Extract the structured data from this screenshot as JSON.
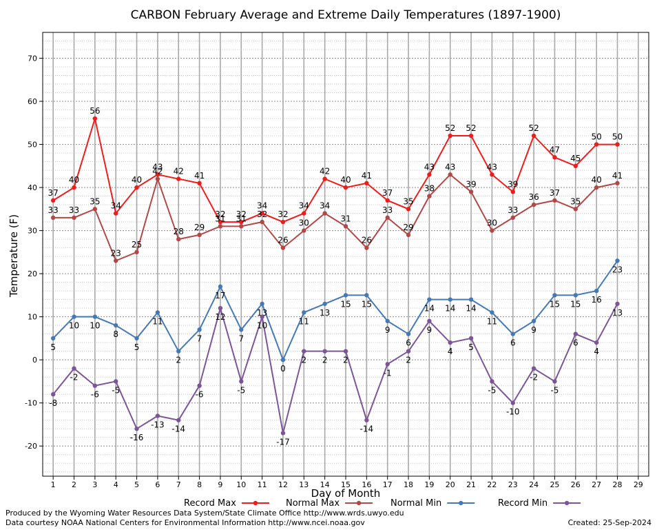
{
  "chart_data": {
    "type": "line",
    "title": "CARBON February Average and Extreme Daily Temperatures (1897-1900)",
    "xlabel": "Day of Month",
    "ylabel": "Temperature (F)",
    "xlim": [
      0.5,
      29.5
    ],
    "ylim": [
      -27,
      76
    ],
    "x_ticks": [
      1,
      2,
      3,
      4,
      5,
      6,
      7,
      8,
      9,
      10,
      11,
      12,
      13,
      14,
      15,
      16,
      17,
      18,
      19,
      20,
      21,
      22,
      23,
      24,
      25,
      26,
      27,
      28,
      29
    ],
    "y_ticks": [
      -20,
      -10,
      0,
      10,
      20,
      30,
      40,
      50,
      60,
      70
    ],
    "grid": true,
    "legend_position": "bottom",
    "x": [
      1,
      2,
      3,
      4,
      5,
      6,
      7,
      8,
      9,
      10,
      11,
      12,
      13,
      14,
      15,
      16,
      17,
      18,
      19,
      20,
      21,
      22,
      23,
      24,
      25,
      26,
      27,
      28
    ],
    "series": [
      {
        "name": "Record Max",
        "color": "#ee1c1c",
        "label_position": "above",
        "values": [
          37,
          40,
          56,
          34,
          40,
          43,
          42,
          41,
          32,
          32,
          34,
          32,
          34,
          42,
          40,
          41,
          37,
          35,
          43,
          52,
          52,
          43,
          39,
          52,
          47,
          45,
          50,
          50
        ]
      },
      {
        "name": "Normal Max",
        "color": "#b04848",
        "label_position": "above",
        "values": [
          33,
          33,
          35,
          23,
          25,
          42,
          28,
          29,
          31,
          31,
          32,
          26,
          30,
          34,
          31,
          26,
          33,
          29,
          38,
          43,
          39,
          30,
          33,
          36,
          37,
          35,
          40,
          41
        ]
      },
      {
        "name": "Normal Min",
        "color": "#4678b4",
        "label_position": "below",
        "values": [
          5,
          10,
          10,
          8,
          5,
          11,
          2,
          7,
          17,
          7,
          13,
          0,
          11,
          13,
          15,
          15,
          9,
          6,
          14,
          14,
          14,
          11,
          6,
          9,
          15,
          15,
          16,
          23
        ]
      },
      {
        "name": "Record Min",
        "color": "#7b5596",
        "label_position": "below",
        "values": [
          -8,
          -2,
          -6,
          -5,
          -16,
          -13,
          -14,
          -6,
          12,
          -5,
          10,
          -17,
          2,
          2,
          2,
          -14,
          -1,
          2,
          9,
          4,
          5,
          -5,
          -10,
          -2,
          -5,
          6,
          4,
          13
        ]
      }
    ]
  },
  "footer": {
    "produced_by": "Produced by the Wyoming Water Resources Data System/State Climate Office http://www.wrds.uwyo.edu",
    "courtesy": "Data courtesy NOAA National Centers for Environmental Information http://www.ncei.noaa.gov",
    "created": "Created: 25-Sep-2024"
  }
}
